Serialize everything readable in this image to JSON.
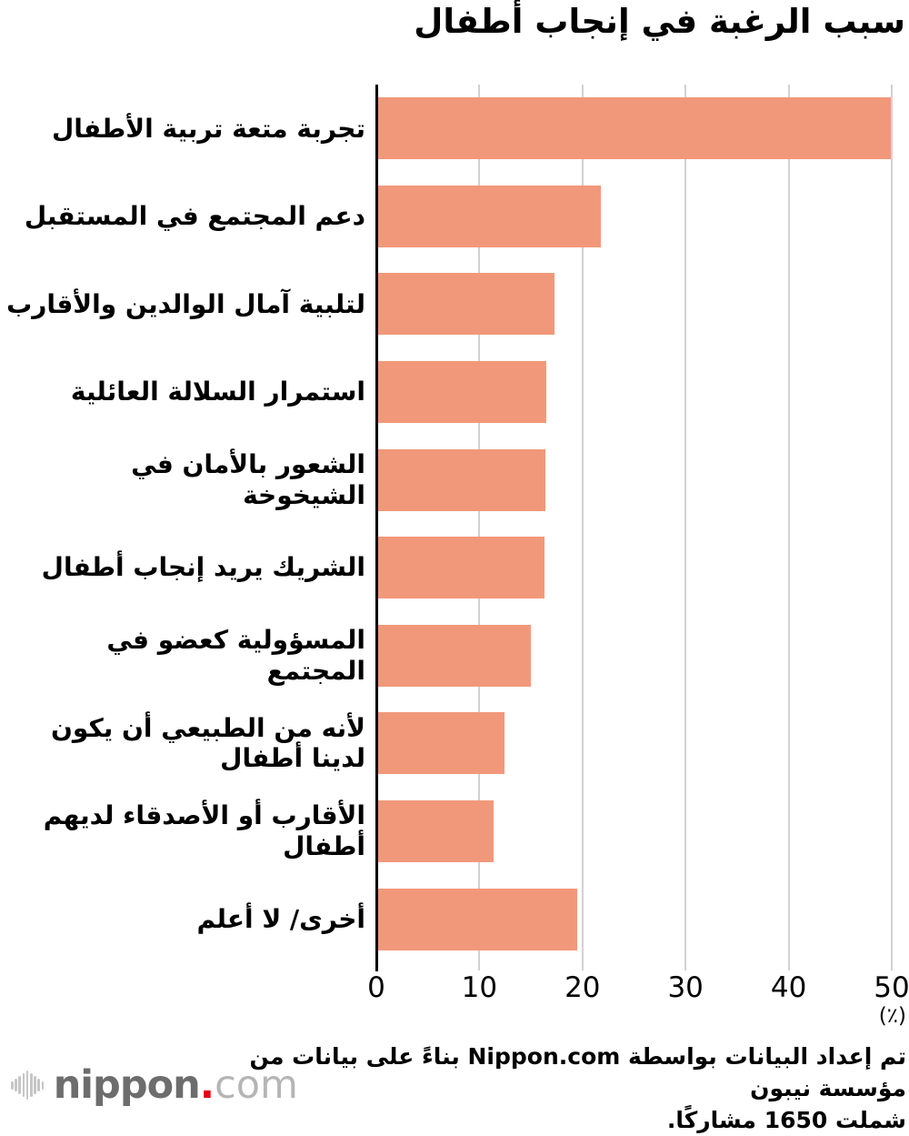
{
  "title": "سبب الرغبة في إنجاب أطفال",
  "chart_data": {
    "type": "bar",
    "orientation": "horizontal",
    "title": "سبب الرغبة في إنجاب أطفال",
    "categories": [
      "تجربة متعة تربية الأطفال",
      "دعم المجتمع في المستقبل",
      "لتلبية آمال الوالدين والأقارب",
      "استمرار السلالة العائلية",
      "الشعور بالأمان في الشيخوخة",
      "الشريك يريد إنجاب أطفال",
      "المسؤولية كعضو في المجتمع",
      "لأنه من الطبيعي أن يكون لدينا أطفال",
      "الأقارب أو الأصدقاء لديهم أطفال",
      "أخرى/ لا أعلم"
    ],
    "values": [
      49.9,
      21.8,
      17.3,
      16.5,
      16.4,
      16.3,
      15.0,
      12.4,
      11.4,
      19.5
    ],
    "xlabel": "(٪)",
    "xlim": [
      0,
      50
    ],
    "xticks": [
      0,
      10,
      20,
      30,
      40,
      50
    ],
    "grid": "vertical",
    "legend": "none",
    "bar_color": "#F2987A",
    "gridline_color": "#d2d2d2",
    "axis_color": "#000000"
  },
  "footnote_lines": [
    "تم إعداد البيانات بواسطة Nippon.com بناءً على بيانات من مؤسسة نيبون",
    "شملت 1650 مشاركًا."
  ],
  "logo": {
    "name": "nippon",
    "dot": ".",
    "tld": "com",
    "colors": {
      "name": "#6d6d6d",
      "dot": "#e60012",
      "tld": "#b5b5b5",
      "wave": "#c6c6c6"
    }
  }
}
